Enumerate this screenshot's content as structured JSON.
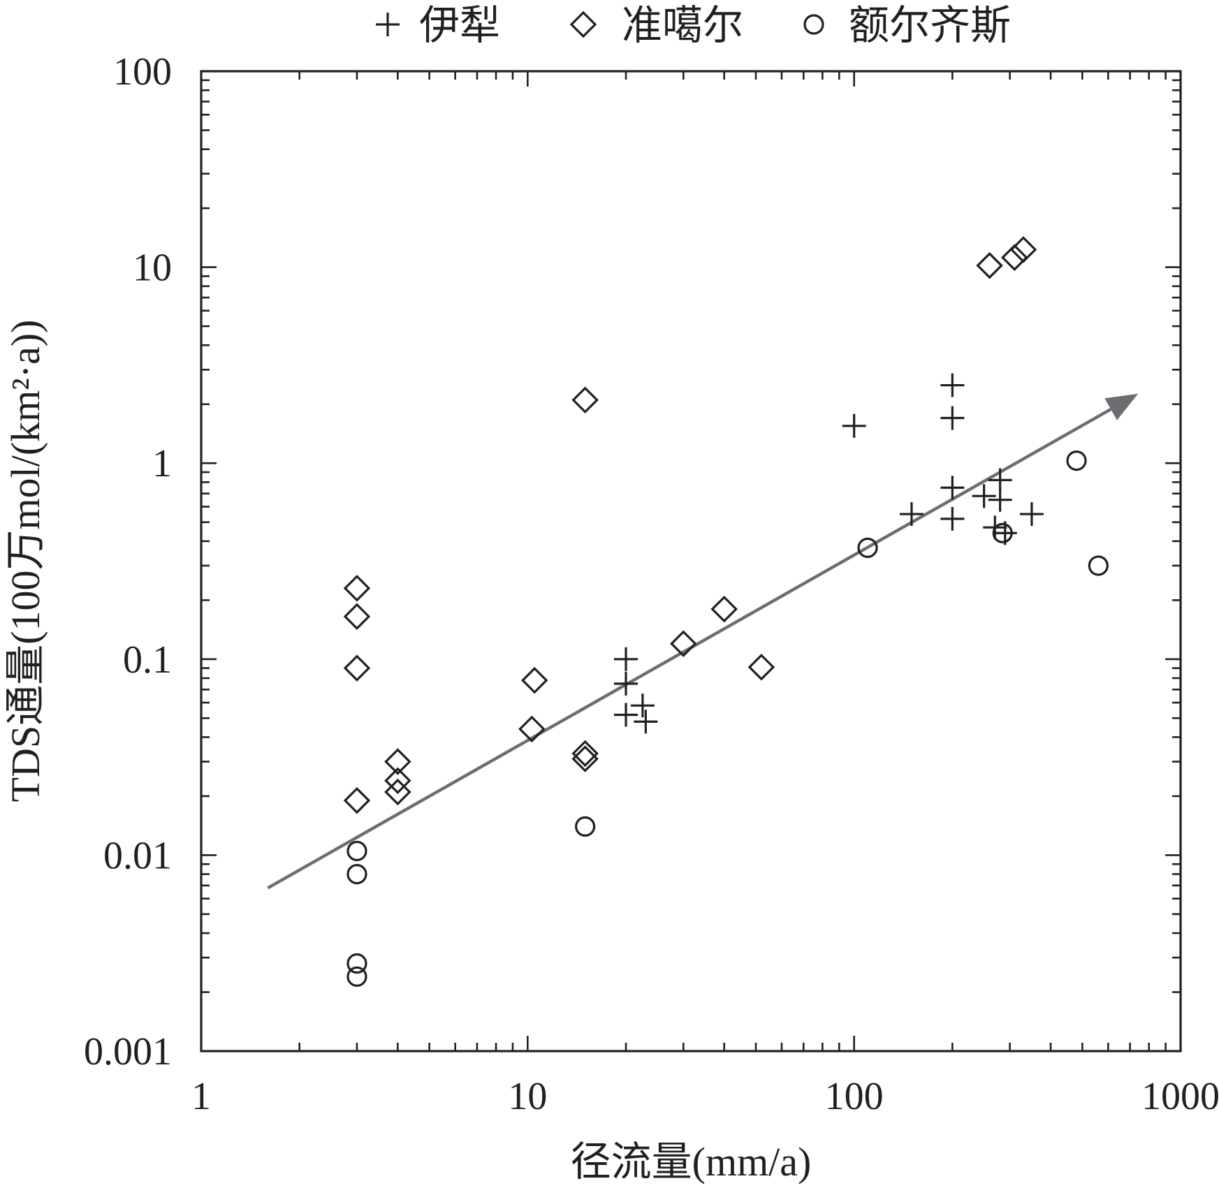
{
  "chart_data": {
    "type": "scatter",
    "x_scale": "log",
    "y_scale": "log",
    "xlabel": "径流量(mm/a)",
    "ylabel": "TDS通量(100万mol/(km²·a))",
    "xlim": [
      1,
      1000
    ],
    "ylim": [
      0.001,
      100
    ],
    "x_ticks": [
      {
        "value": 1,
        "label": "1"
      },
      {
        "value": 10,
        "label": "10"
      },
      {
        "value": 100,
        "label": "100"
      },
      {
        "value": 1000,
        "label": "1000"
      }
    ],
    "y_ticks": [
      {
        "value": 0.001,
        "label": "0.001"
      },
      {
        "value": 0.01,
        "label": "0.01"
      },
      {
        "value": 0.1,
        "label": "0.1"
      },
      {
        "value": 1,
        "label": "1"
      },
      {
        "value": 10,
        "label": "10"
      },
      {
        "value": 100,
        "label": "100"
      }
    ],
    "legend_position": "top",
    "series": [
      {
        "name": "伊犁",
        "marker": "plus",
        "points": [
          [
            100,
            1.55
          ],
          [
            200,
            2.5
          ],
          [
            200,
            1.7
          ],
          [
            200,
            0.75
          ],
          [
            200,
            0.52
          ],
          [
            150,
            0.55
          ],
          [
            250,
            0.68
          ],
          [
            280,
            0.82
          ],
          [
            280,
            0.65
          ],
          [
            270,
            0.47
          ],
          [
            290,
            0.44
          ],
          [
            350,
            0.55
          ],
          [
            20,
            0.1
          ],
          [
            20,
            0.075
          ],
          [
            20,
            0.052
          ],
          [
            22.5,
            0.058
          ],
          [
            23,
            0.048
          ]
        ]
      },
      {
        "name": "准噶尔",
        "marker": "diamond",
        "points": [
          [
            3,
            0.23
          ],
          [
            3,
            0.165
          ],
          [
            3,
            0.09
          ],
          [
            3,
            0.019
          ],
          [
            4,
            0.03
          ],
          [
            4,
            0.024
          ],
          [
            4,
            0.021
          ],
          [
            10.5,
            0.078
          ],
          [
            10.3,
            0.044
          ],
          [
            15,
            0.033
          ],
          [
            15,
            0.031
          ],
          [
            15,
            2.1
          ],
          [
            30,
            0.12
          ],
          [
            40,
            0.18
          ],
          [
            52,
            0.091
          ],
          [
            260,
            10.2
          ],
          [
            310,
            11.2
          ],
          [
            330,
            12.3
          ]
        ]
      },
      {
        "name": "额尔齐斯",
        "marker": "circle",
        "points": [
          [
            3,
            0.0105
          ],
          [
            3,
            0.008
          ],
          [
            3,
            0.0028
          ],
          [
            3,
            0.0024
          ],
          [
            15,
            0.014
          ],
          [
            110,
            0.37
          ],
          [
            285,
            0.44
          ],
          [
            480,
            1.03
          ],
          [
            560,
            0.3
          ]
        ]
      }
    ],
    "trend_arrow": {
      "from": [
        1.6,
        0.0068
      ],
      "to": [
        720,
        2.2
      ],
      "color": "#6d6e71"
    },
    "colors": {
      "ink": "#231f20",
      "trend": "#6d6e71",
      "background": "#ffffff"
    }
  }
}
